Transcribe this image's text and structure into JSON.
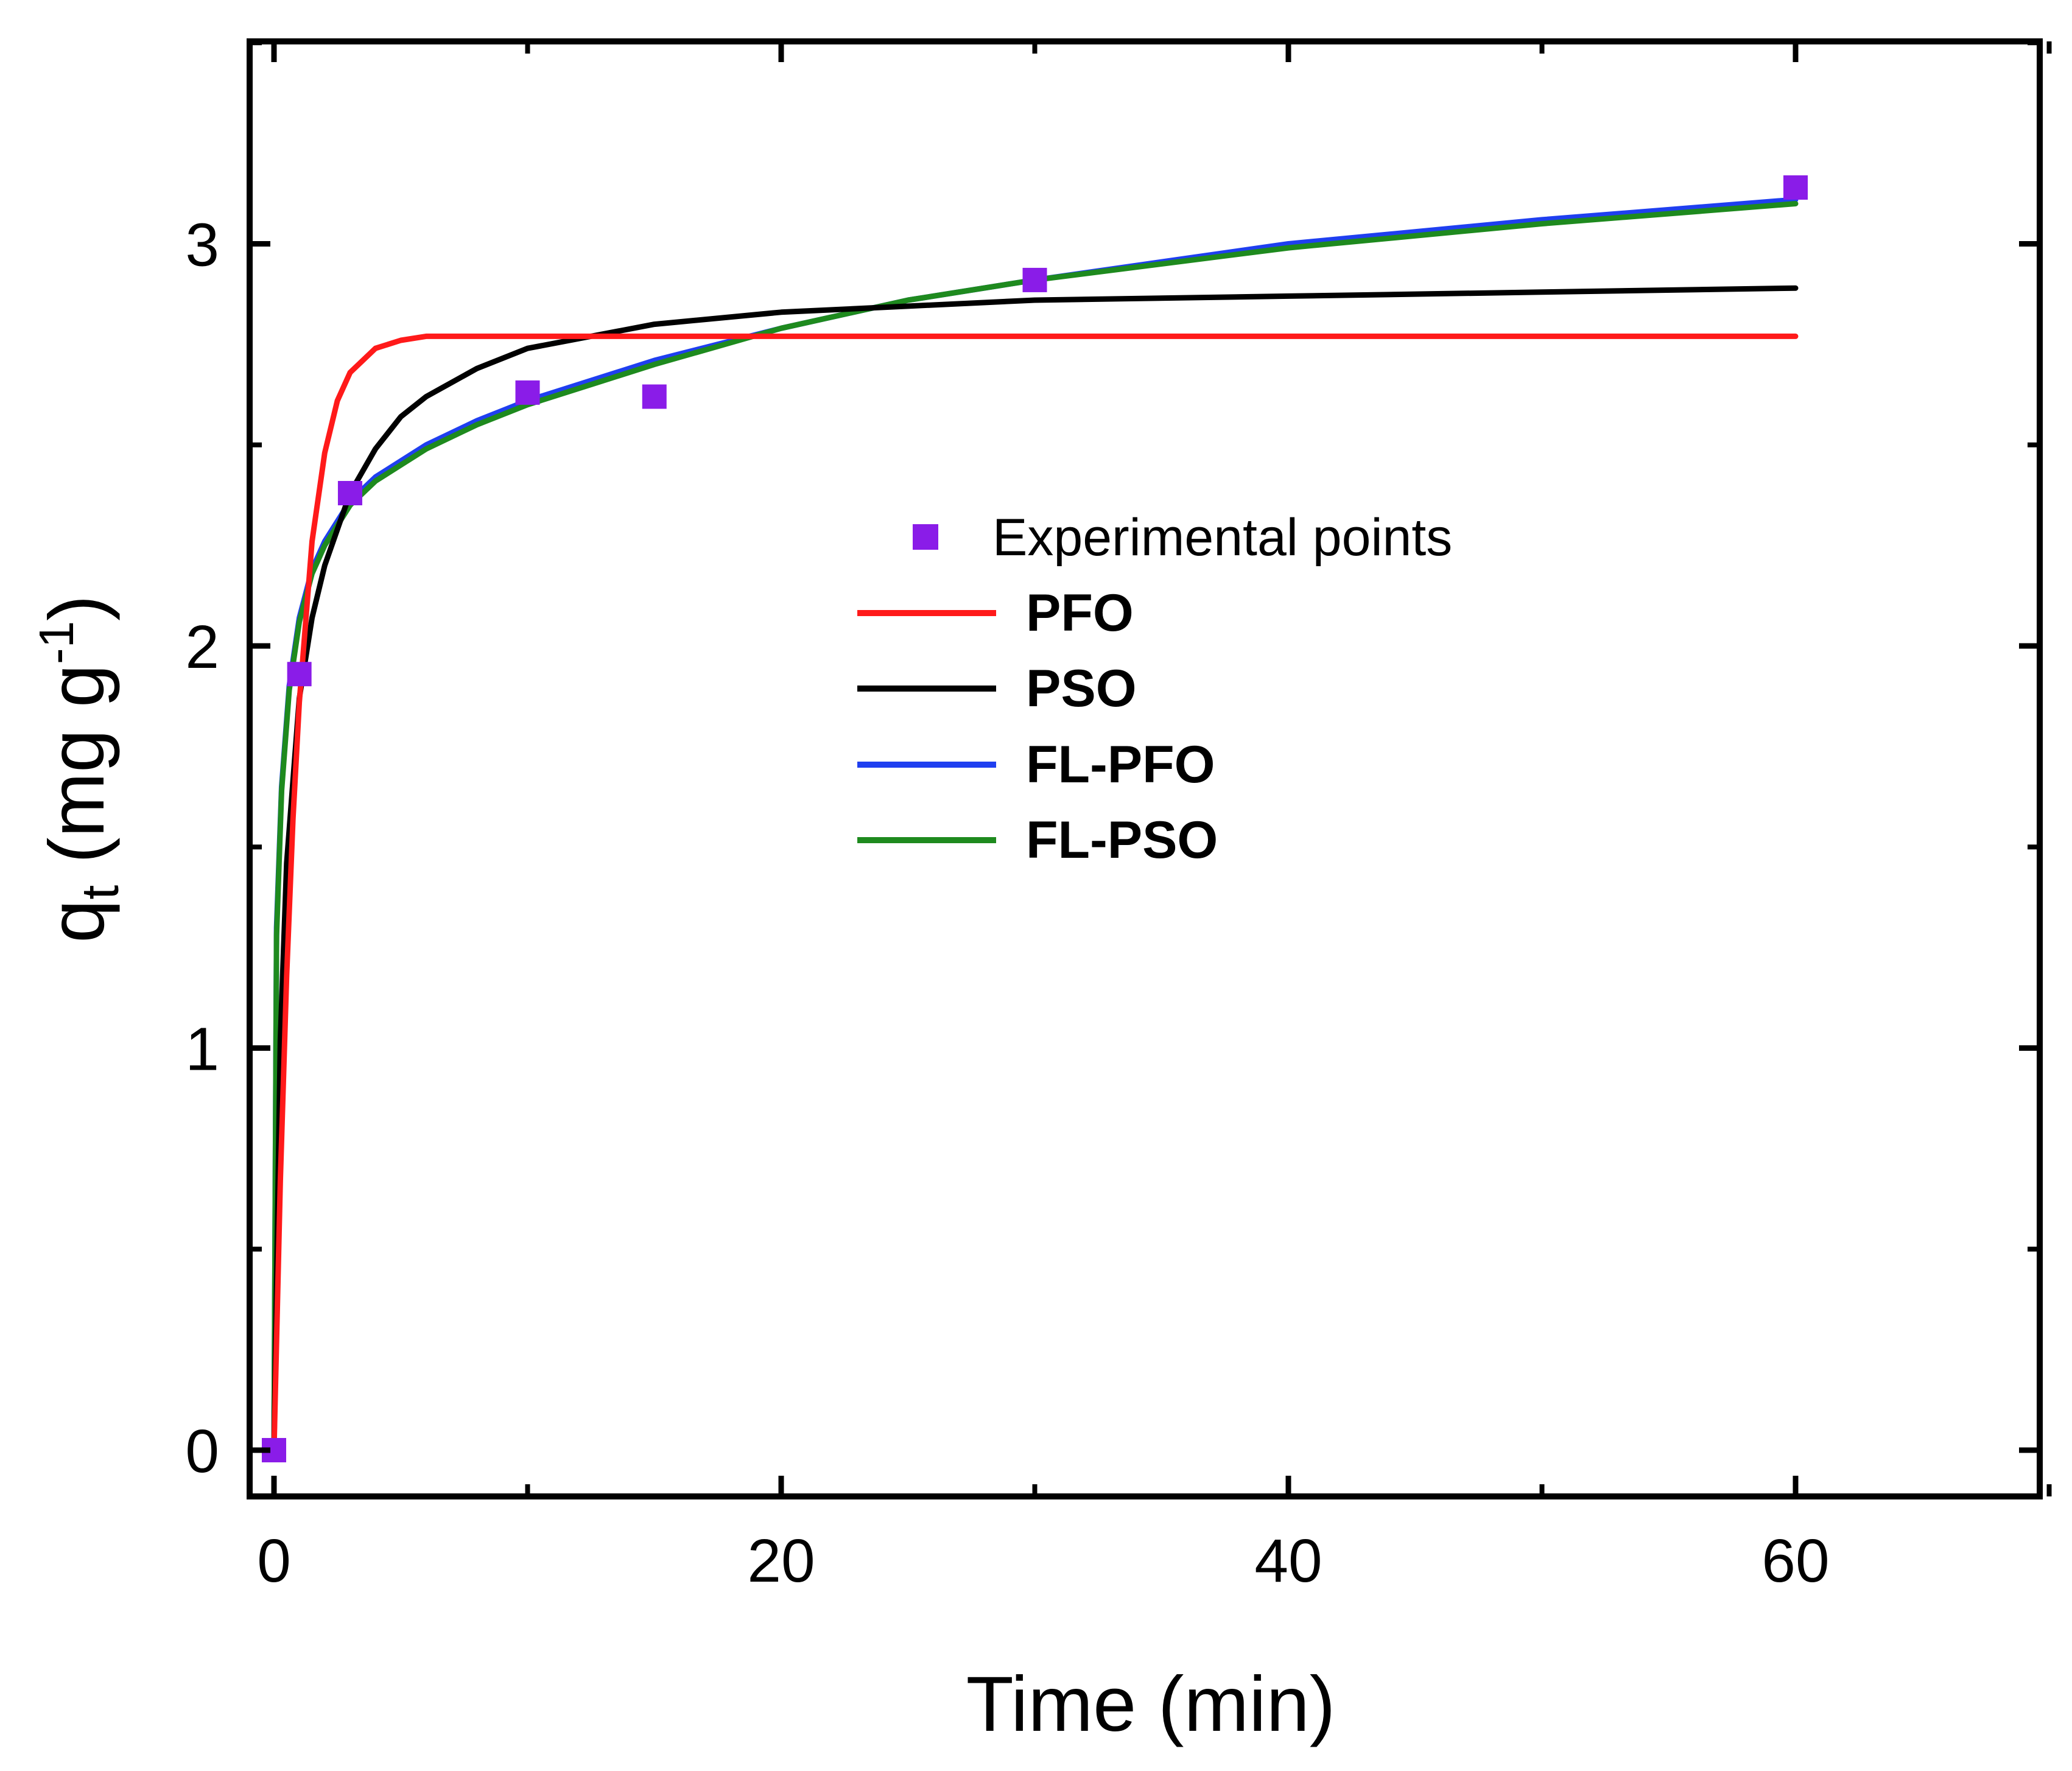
{
  "chart_data": {
    "type": "line",
    "title": "",
    "xlabel": "Time (min)",
    "ylabel_main": "q",
    "ylabel_sub": "t",
    "ylabel_units": " (mg g",
    "ylabel_sup": "-1",
    "ylabel_close": ")",
    "xlim": [
      -1,
      70
    ],
    "ylim": [
      -0.1,
      3.5
    ],
    "x_ticks": [
      0,
      20,
      40,
      60
    ],
    "x_ticks_minor": [
      10,
      30,
      50,
      70
    ],
    "y_ticks": [
      0,
      1,
      2,
      3
    ],
    "y_ticks_minor": [
      0.5,
      1.5,
      2.5,
      3.5
    ],
    "x_tick_labels": [
      "0",
      "20",
      "40",
      "60"
    ],
    "y_tick_labels": [
      "0",
      "1",
      "2",
      "3"
    ],
    "legend_position": "center-right",
    "experimental": {
      "name": "Experimental points",
      "color": "#8a1ce8",
      "x": [
        0,
        1,
        3,
        10,
        15,
        30,
        60
      ],
      "y": [
        0,
        1.93,
        2.38,
        2.63,
        2.62,
        2.91,
        3.14
      ]
    },
    "series": [
      {
        "name": "PFO",
        "color": "#ff1a1a",
        "x": [
          0,
          0.25,
          0.5,
          0.75,
          1,
          1.5,
          2,
          2.5,
          3,
          4,
          5,
          6,
          8,
          10,
          15,
          20,
          30,
          40,
          50,
          60
        ],
        "y": [
          0,
          0.67,
          1.18,
          1.57,
          1.86,
          2.26,
          2.48,
          2.61,
          2.68,
          2.74,
          2.76,
          2.77,
          2.77,
          2.77,
          2.77,
          2.77,
          2.77,
          2.77,
          2.77,
          2.77
        ]
      },
      {
        "name": "PSO",
        "color": "#000000",
        "x": [
          0,
          0.25,
          0.5,
          1,
          1.5,
          2,
          3,
          4,
          5,
          6,
          8,
          10,
          15,
          20,
          30,
          40,
          50,
          60
        ],
        "y": [
          0,
          1.02,
          1.46,
          1.87,
          2.07,
          2.2,
          2.38,
          2.49,
          2.57,
          2.62,
          2.69,
          2.74,
          2.8,
          2.83,
          2.86,
          2.87,
          2.88,
          2.89
        ]
      },
      {
        "name": "FL-PFO",
        "color": "#1f3ff0",
        "x": [
          0,
          0.1,
          0.3,
          0.6,
          1,
          1.5,
          2,
          3,
          4,
          6,
          8,
          10,
          15,
          20,
          25,
          30,
          40,
          50,
          60
        ],
        "y": [
          0,
          1.3,
          1.65,
          1.9,
          2.07,
          2.19,
          2.26,
          2.36,
          2.42,
          2.5,
          2.56,
          2.61,
          2.71,
          2.79,
          2.86,
          2.91,
          3.0,
          3.06,
          3.11
        ]
      },
      {
        "name": "FL-PSO",
        "color": "#1e8a1e",
        "x": [
          0,
          0.1,
          0.3,
          0.6,
          1,
          1.5,
          2,
          3,
          4,
          6,
          8,
          10,
          15,
          20,
          25,
          30,
          40,
          50,
          60
        ],
        "y": [
          0,
          1.28,
          1.64,
          1.89,
          2.06,
          2.18,
          2.25,
          2.35,
          2.41,
          2.49,
          2.55,
          2.6,
          2.7,
          2.79,
          2.86,
          2.91,
          2.99,
          3.05,
          3.1
        ]
      }
    ]
  }
}
